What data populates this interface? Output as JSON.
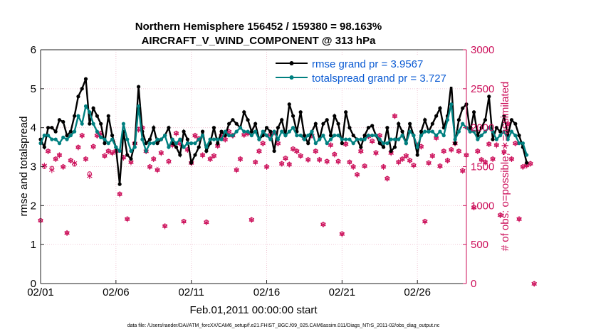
{
  "chart_data": {
    "type": "line",
    "title": "Northern Hemisphere 156452 / 159380 = 98.163%",
    "subtitle": "AIRCRAFT_V_WIND_COMPONENT @ 313 hPa",
    "xlabel": "Feb.01,2011 00:00:00 start",
    "ylabel_left": "rmse and totalspread",
    "ylabel_right": "# of obs: o=possible; ∗=assimilated",
    "footer": "data file: /Users/raeder/DAI/ATM_forcXX/CAM6_setup/f.e21.FHIST_BGC.f09_025.CAM6assim.011/Diags_NTrS_2011-02/obs_diag_output.nc",
    "xlim": [
      0,
      28.25
    ],
    "ylim_left": [
      0,
      6
    ],
    "ylim_right": [
      0,
      3000
    ],
    "x_ticks": [
      0,
      5,
      10,
      15,
      20,
      25
    ],
    "x_tick_labels": [
      "02/01",
      "02/06",
      "02/11",
      "02/16",
      "02/21",
      "02/26"
    ],
    "y_left_ticks": [
      "0",
      "1",
      "2",
      "3",
      "4",
      "5",
      "6"
    ],
    "y_right_ticks": [
      "0",
      "500",
      "1000",
      "1500",
      "2000",
      "2500",
      "3000"
    ],
    "colors": {
      "rmse": "#000000",
      "spread": "#008080",
      "obs": "#cc0f5a",
      "legend_text": "#0b5bd3"
    },
    "series": [
      {
        "name": "rmse grand pr = 3.9567",
        "x_start": 0,
        "x_step": 0.25,
        "values": [
          3.7,
          3.5,
          4.0,
          4.0,
          3.9,
          4.2,
          4.15,
          3.8,
          3.9,
          4.3,
          4.8,
          5.0,
          5.25,
          4.1,
          4.5,
          4.3,
          4.1,
          3.6,
          4.3,
          3.8,
          3.5,
          2.55,
          3.9,
          3.3,
          3.2,
          3.6,
          5.05,
          3.9,
          3.6,
          3.7,
          4.0,
          3.6,
          3.7,
          3.8,
          4.0,
          3.6,
          3.5,
          3.3,
          3.9,
          3.7,
          3.1,
          3.3,
          3.5,
          3.9,
          3.4,
          3.6,
          4.0,
          3.6,
          3.9,
          3.8,
          4.1,
          4.2,
          4.1,
          4.0,
          4.4,
          4.2,
          3.9,
          4.1,
          3.7,
          3.8,
          4.0,
          3.9,
          3.4,
          4.0,
          4.2,
          3.8,
          4.6,
          4.3,
          3.9,
          4.4,
          3.8,
          3.6,
          3.9,
          4.1,
          3.7,
          4.1,
          4.2,
          3.8,
          4.3,
          4.1,
          3.6,
          4.4,
          4.0,
          3.8,
          3.7,
          3.5,
          3.8,
          4.0,
          4.05,
          3.8,
          3.6,
          3.5,
          4.0,
          3.4,
          3.5,
          4.1,
          3.9,
          3.6,
          4.1,
          3.8,
          3.3,
          3.9,
          4.2,
          3.9,
          4.1,
          4.3,
          4.5,
          4.0,
          4.3,
          5.15,
          3.6,
          4.2,
          4.5,
          4.6,
          3.9,
          4.4,
          3.8,
          4.0,
          4.2,
          4.8,
          3.7,
          4.0,
          3.9,
          4.3,
          3.8,
          4.2,
          4.1,
          3.8,
          3.5,
          3.1
        ]
      },
      {
        "name": "totalspread grand pr = 3.727",
        "x_start": 0,
        "x_step": 0.25,
        "values": [
          3.6,
          3.8,
          3.8,
          3.7,
          3.7,
          3.6,
          3.75,
          3.7,
          3.8,
          3.9,
          4.3,
          4.1,
          4.55,
          4.4,
          4.1,
          3.9,
          3.75,
          3.7,
          3.6,
          3.7,
          3.5,
          3.4,
          4.1,
          3.7,
          3.4,
          3.5,
          4.55,
          3.7,
          3.4,
          3.6,
          3.6,
          3.7,
          3.7,
          3.8,
          3.5,
          3.7,
          3.6,
          3.7,
          3.5,
          3.6,
          3.6,
          3.6,
          3.7,
          3.8,
          3.5,
          3.7,
          3.7,
          3.7,
          3.7,
          3.9,
          3.8,
          3.8,
          3.9,
          4.0,
          3.9,
          3.9,
          3.8,
          3.9,
          3.7,
          3.9,
          3.8,
          3.7,
          3.9,
          3.7,
          3.9,
          3.8,
          3.9,
          4.0,
          3.8,
          3.8,
          3.7,
          3.8,
          3.9,
          3.6,
          3.7,
          3.8,
          3.6,
          3.7,
          3.8,
          3.8,
          3.7,
          3.7,
          3.7,
          3.6,
          3.7,
          3.7,
          3.7,
          3.8,
          3.8,
          3.8,
          3.7,
          3.6,
          3.6,
          3.7,
          3.7,
          3.7,
          3.8,
          3.6,
          3.9,
          3.8,
          3.5,
          3.8,
          3.9,
          3.9,
          3.9,
          3.8,
          3.9,
          3.8,
          4.2,
          4.6,
          3.7,
          3.9,
          4.1,
          4.0,
          3.9,
          3.9,
          3.7,
          3.8,
          3.9,
          4.0,
          3.9,
          3.7,
          3.8,
          3.9,
          3.7,
          3.9,
          3.8,
          3.6,
          3.6,
          3.3
        ]
      }
    ],
    "obs_possible": {
      "x_start": 0,
      "x_step": 0.25,
      "values": [
        810,
        1500,
        1700,
        1480,
        1600,
        1650,
        1500,
        650,
        1580,
        1530,
        1750,
        1900,
        1600,
        1410,
        1760,
        1900,
        1930,
        1640,
        1700,
        1680,
        1700,
        1150,
        1620,
        830,
        1560,
        1800,
        1980,
        2000,
        1700,
        1500,
        1600,
        1460,
        1680,
        740,
        1570,
        1780,
        1930,
        1800,
        800,
        1720,
        1550,
        1900,
        1860,
        1650,
        790,
        1600,
        1640,
        1770,
        1900,
        1850,
        1950,
        1900,
        1460,
        1600,
        1910,
        1930,
        820,
        1560,
        1700,
        1800,
        1500,
        1910,
        1940,
        1800,
        1540,
        1610,
        1530,
        1730,
        1700,
        1640,
        1870,
        1590,
        1900,
        1700,
        1590,
        760,
        1570,
        1780,
        1660,
        1570,
        640,
        1790,
        1560,
        1500,
        1400,
        1700,
        1510,
        1890,
        1830,
        1680,
        1900,
        1500,
        1350,
        1680,
        2150,
        1560,
        1600,
        1640,
        1580,
        1520,
        1780,
        1760,
        800,
        1550,
        1640,
        1870,
        1510,
        1700,
        1580,
        1720,
        1800,
        1700,
        1450,
        1650,
        1990,
        980,
        1700,
        1590,
        1560,
        1790,
        1600,
        1780,
        880,
        1690,
        2050,
        1600,
        1800,
        830,
        1500,
        1520,
        1540,
        0
      ]
    },
    "obs_assimilated": {
      "x_start": 0,
      "x_step": 0.25,
      "values": [
        810,
        1520,
        1700,
        1460,
        1600,
        1650,
        1500,
        650,
        1580,
        1550,
        1750,
        1900,
        1600,
        1380,
        1760,
        1900,
        1930,
        1640,
        1700,
        1680,
        1700,
        1150,
        1620,
        830,
        1560,
        1800,
        1980,
        2000,
        1700,
        1500,
        1600,
        1460,
        1680,
        740,
        1570,
        1780,
        1930,
        1800,
        800,
        1720,
        1550,
        1900,
        1860,
        1650,
        790,
        1600,
        1640,
        1770,
        1900,
        1850,
        1950,
        1900,
        1460,
        1600,
        1910,
        1930,
        820,
        1560,
        1700,
        1800,
        1500,
        1910,
        1940,
        1800,
        1540,
        1610,
        1530,
        1730,
        1700,
        1640,
        1870,
        1590,
        1900,
        1700,
        1590,
        760,
        1570,
        1780,
        1660,
        1570,
        640,
        1790,
        1560,
        1500,
        1400,
        1700,
        1510,
        1890,
        1830,
        1680,
        1900,
        1500,
        1350,
        1680,
        2150,
        1560,
        1600,
        1640,
        1580,
        1520,
        1780,
        1760,
        800,
        1550,
        1640,
        1870,
        1510,
        1700,
        1580,
        1720,
        1800,
        1700,
        1450,
        1650,
        1990,
        980,
        1700,
        1590,
        1560,
        1790,
        1600,
        1780,
        880,
        1690,
        2050,
        1600,
        1800,
        830,
        1500,
        1520,
        1540,
        0
      ]
    }
  }
}
